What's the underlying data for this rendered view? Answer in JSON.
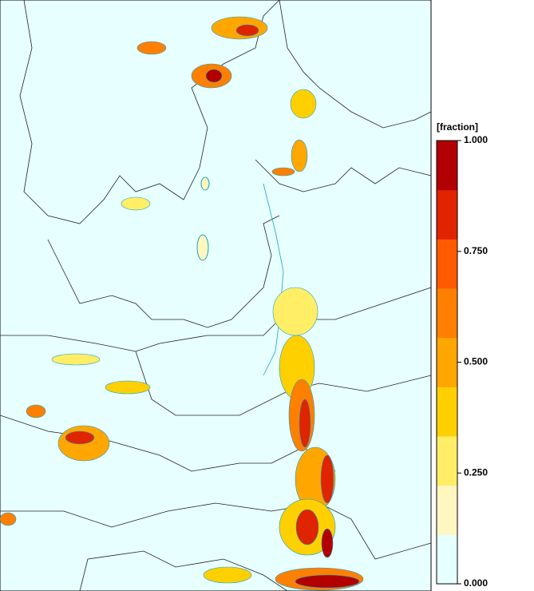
{
  "colorbar": {
    "label": "[fraction]",
    "lim": [
      0,
      1
    ],
    "ticks": [
      {
        "value": 0,
        "label": "0.000"
      },
      {
        "value": 0.25,
        "label": "0.250"
      },
      {
        "value": 0.5,
        "label": "0.500"
      },
      {
        "value": 0.75,
        "label": "0.750"
      },
      {
        "value": 1,
        "label": "1.000"
      }
    ],
    "colors": [
      "#e6ffff",
      "#fff6c0",
      "#ffee66",
      "#ffd000",
      "#ffa600",
      "#ff8000",
      "#ff5a00",
      "#e02400",
      "#b20000"
    ]
  }
}
